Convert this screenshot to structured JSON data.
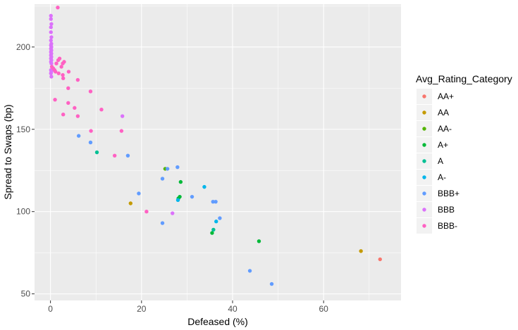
{
  "chart_data": {
    "type": "scatter",
    "title": "",
    "xlabel": "Defeased (%)",
    "ylabel": "Spread to Swaps (bp)",
    "xlim": [
      -3.5,
      77
    ],
    "ylim": [
      46,
      226
    ],
    "x_ticks": [
      0,
      20,
      40,
      60
    ],
    "y_ticks": [
      50,
      100,
      150,
      200
    ],
    "grid": true,
    "legend_title": "Avg_Rating_Category",
    "legend_position": "right",
    "series": [
      {
        "name": "AA+",
        "color": "#F8766D",
        "points": [
          [
            72.4,
            71
          ]
        ]
      },
      {
        "name": "AA",
        "color": "#C49A00",
        "points": [
          [
            68.2,
            76
          ],
          [
            17.6,
            105
          ]
        ]
      },
      {
        "name": "AA-",
        "color": "#53B400",
        "points": [
          [
            25.2,
            126
          ]
        ]
      },
      {
        "name": "A+",
        "color": "#00B938",
        "points": [
          [
            28.6,
            118
          ],
          [
            28.4,
            109
          ],
          [
            28.1,
            108
          ],
          [
            35.5,
            87
          ],
          [
            45.8,
            82
          ]
        ]
      },
      {
        "name": "A",
        "color": "#00C094",
        "points": [
          [
            10.2,
            136
          ],
          [
            35.8,
            89
          ]
        ]
      },
      {
        "name": "A-",
        "color": "#00B6EB",
        "points": [
          [
            33.8,
            115
          ],
          [
            28.0,
            107
          ],
          [
            36.4,
            94
          ]
        ]
      },
      {
        "name": "BBB+",
        "color": "#619CFF",
        "points": [
          [
            6.2,
            146
          ],
          [
            8.8,
            142
          ],
          [
            17.0,
            134
          ],
          [
            19.4,
            111
          ],
          [
            24.6,
            120
          ],
          [
            25.7,
            126
          ],
          [
            27.9,
            127
          ],
          [
            31.1,
            109
          ],
          [
            35.7,
            106
          ],
          [
            36.3,
            106
          ],
          [
            37.2,
            96
          ],
          [
            24.6,
            93
          ],
          [
            43.8,
            64
          ],
          [
            48.6,
            56
          ]
        ]
      },
      {
        "name": "BBB",
        "color": "#DB72FB",
        "points": [
          [
            0.1,
            219
          ],
          [
            0.1,
            217
          ],
          [
            0.2,
            214
          ],
          [
            0.1,
            212
          ],
          [
            0.1,
            209
          ],
          [
            0.2,
            206
          ],
          [
            0.1,
            204
          ],
          [
            0.2,
            202
          ],
          [
            0.1,
            201
          ],
          [
            0.2,
            200
          ],
          [
            0.1,
            199
          ],
          [
            0.2,
            198
          ],
          [
            0.1,
            197
          ],
          [
            0.2,
            196
          ],
          [
            0.1,
            195
          ],
          [
            0.2,
            194
          ],
          [
            0.1,
            193
          ],
          [
            0.2,
            192
          ],
          [
            0.1,
            191
          ],
          [
            0.2,
            190
          ],
          [
            0.1,
            186
          ],
          [
            0.2,
            185
          ],
          [
            0.1,
            184
          ],
          [
            0.2,
            182
          ],
          [
            15.8,
            158
          ],
          [
            26.8,
            99
          ]
        ]
      },
      {
        "name": "BBB-",
        "color": "#FF61C3",
        "points": [
          [
            1.6,
            224
          ],
          [
            0.3,
            188
          ],
          [
            0.6,
            187
          ],
          [
            0.9,
            186
          ],
          [
            1.3,
            190
          ],
          [
            1.7,
            192
          ],
          [
            2.0,
            193
          ],
          [
            2.4,
            188
          ],
          [
            2.7,
            190
          ],
          [
            3.0,
            191
          ],
          [
            1.1,
            185
          ],
          [
            1.8,
            184
          ],
          [
            2.7,
            183
          ],
          [
            2.8,
            181
          ],
          [
            4.0,
            185
          ],
          [
            3.9,
            175
          ],
          [
            6.0,
            180
          ],
          [
            8.8,
            173
          ],
          [
            1.0,
            168
          ],
          [
            3.9,
            166
          ],
          [
            5.3,
            163
          ],
          [
            11.2,
            162
          ],
          [
            2.8,
            159
          ],
          [
            6.0,
            158
          ],
          [
            15.6,
            149
          ],
          [
            8.9,
            149
          ],
          [
            14.1,
            134
          ],
          [
            21.1,
            100
          ]
        ]
      }
    ]
  }
}
